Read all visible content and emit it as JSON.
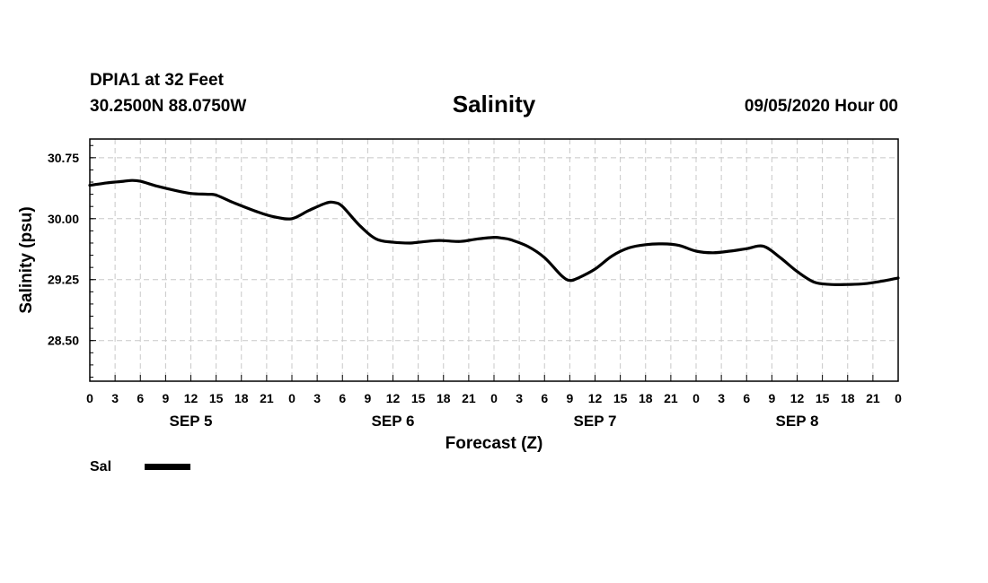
{
  "header": {
    "station": "DPIA1 at 32 Feet",
    "location": "30.2500N 88.0750W",
    "title": "Salinity",
    "datetime": "09/05/2020 Hour 00"
  },
  "chart_data": {
    "type": "line",
    "title": "Salinity",
    "xlabel": "Forecast (Z)",
    "ylabel": "Salinity (psu)",
    "ylim": [
      28.0,
      30.98
    ],
    "xlim_hours": [
      0,
      96
    ],
    "x_unit": "hours since 09/05/2020 00Z",
    "y_ticks": [
      "30.75",
      "30.00",
      "29.25",
      "28.50"
    ],
    "y_tick_values": [
      30.75,
      30.0,
      29.25,
      28.5
    ],
    "x_tick_labels": [
      "0",
      "3",
      "6",
      "9",
      "12",
      "15",
      "18",
      "21",
      "0",
      "3",
      "6",
      "9",
      "12",
      "15",
      "18",
      "21",
      "0",
      "3",
      "6",
      "9",
      "12",
      "15",
      "18",
      "21",
      "0",
      "3",
      "6",
      "9",
      "12",
      "15",
      "18",
      "21",
      "0"
    ],
    "day_labels": [
      {
        "label": "SEP 5",
        "hour": 12
      },
      {
        "label": "SEP 6",
        "hour": 36
      },
      {
        "label": "SEP 7",
        "hour": 60
      },
      {
        "label": "SEP 8",
        "hour": 84
      }
    ],
    "grid": true,
    "legend_position": "bottom-left",
    "series": [
      {
        "name": "Sal",
        "color": "#000000",
        "x": [
          0,
          2,
          4,
          5,
          6,
          8,
          10,
          12,
          14,
          15,
          17,
          20,
          22,
          24,
          26,
          28,
          29,
          30,
          32,
          34,
          36,
          38,
          39,
          41,
          42,
          44,
          46,
          48,
          49,
          50,
          52,
          54,
          56,
          57,
          58,
          60,
          62,
          64,
          66,
          68,
          70,
          72,
          74,
          76,
          78,
          80,
          82,
          84,
          86,
          88,
          90,
          92,
          94,
          96
        ],
        "y": [
          30.41,
          30.44,
          30.46,
          30.47,
          30.46,
          30.4,
          30.35,
          30.31,
          30.3,
          30.29,
          30.2,
          30.08,
          30.02,
          30.0,
          30.1,
          30.19,
          30.2,
          30.15,
          29.92,
          29.75,
          29.71,
          29.7,
          29.71,
          29.73,
          29.73,
          29.72,
          29.75,
          29.77,
          29.76,
          29.74,
          29.66,
          29.52,
          29.3,
          29.24,
          29.27,
          29.38,
          29.54,
          29.64,
          29.68,
          29.69,
          29.67,
          29.6,
          29.58,
          29.6,
          29.63,
          29.66,
          29.52,
          29.35,
          29.22,
          29.19,
          29.19,
          29.2,
          29.23,
          29.27
        ]
      }
    ]
  },
  "legend": {
    "label": "Sal",
    "color": "#000000"
  }
}
